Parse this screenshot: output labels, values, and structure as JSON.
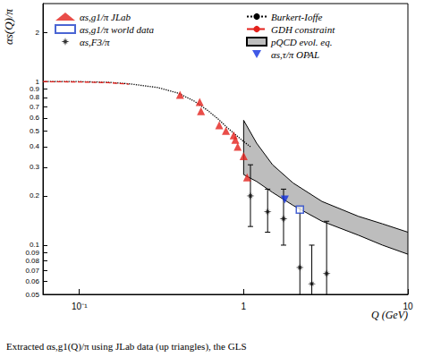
{
  "chart_data": {
    "type": "scatter",
    "title": "Extracted αs,g1(Q)/π using JLab data (up triangles), the GLS",
    "x_label": "Q (GeV)",
    "y_label": "αs(Q)/π",
    "log": true,
    "grid": false,
    "legend": "top",
    "xlim": [
      0.06,
      10
    ],
    "ylim": [
      0.05,
      3
    ],
    "xticks": [
      {
        "value": 0.1,
        "label": "10⁻¹"
      },
      1,
      10
    ],
    "yticks": [
      0.05,
      0.06,
      0.07,
      0.08,
      0.09,
      0.1,
      0.2,
      0.3,
      0.4,
      0.5,
      0.6,
      0.7,
      0.8,
      0.9,
      1,
      2
    ],
    "series": [
      {
        "name": "αs,g1/π JLab",
        "type": "scatter",
        "marker": "triangle",
        "color": "#e3211c",
        "x": [
          0.41,
          0.54,
          0.55,
          0.71,
          0.78,
          0.87,
          0.89,
          0.92,
          1.0,
          1.05
        ],
        "values": [
          0.83,
          0.75,
          0.66,
          0.54,
          0.5,
          0.47,
          0.44,
          0.4,
          0.35,
          0.26
        ]
      },
      {
        "name": "αs,g1/π world data",
        "type": "scatter",
        "marker": "square_open",
        "color": "#1d3fc8",
        "x": [
          2.2
        ],
        "values": [
          0.165
        ]
      },
      {
        "name": "αs,F3/π",
        "type": "scatter",
        "marker": "star",
        "color": "#000000",
        "x": [
          1.1,
          1.4,
          1.75,
          2.2,
          2.6,
          3.2
        ],
        "values": [
          0.2,
          0.16,
          0.145,
          0.073,
          0.058,
          0.067
        ],
        "error_low": [
          0.13,
          0.12,
          0.1,
          0.045,
          0.04,
          0.045
        ],
        "error_high": [
          0.31,
          0.22,
          0.22,
          0.17,
          0.1,
          0.14
        ]
      },
      {
        "name": "Burkert-Ioffe",
        "type": "line",
        "line_style": "dotted",
        "color": "#000000",
        "x": [
          0.06,
          0.1,
          0.15,
          0.2,
          0.3,
          0.4,
          0.5,
          0.6,
          0.7,
          0.8,
          0.9,
          1.0,
          1.1
        ],
        "values": [
          1.0,
          1.0,
          0.99,
          0.97,
          0.92,
          0.85,
          0.76,
          0.67,
          0.59,
          0.52,
          0.47,
          0.43,
          0.4
        ]
      },
      {
        "name": "GDH constraint",
        "type": "line",
        "line_style": "dashed",
        "color": "#e3211c",
        "x": [
          0.06,
          0.1,
          0.15,
          0.2
        ],
        "values": [
          1.0,
          0.995,
          0.985,
          0.965
        ]
      },
      {
        "name": "pQCD evol. eq.",
        "type": "band",
        "color": "#bdbdbd",
        "x": [
          1.0,
          1.2,
          1.5,
          2,
          3,
          5,
          7,
          10
        ],
        "upper": [
          0.58,
          0.42,
          0.31,
          0.24,
          0.185,
          0.15,
          0.135,
          0.12
        ],
        "lower": [
          0.27,
          0.245,
          0.21,
          0.175,
          0.14,
          0.115,
          0.1,
          0.088
        ]
      },
      {
        "name": "αs,τ/π OPAL",
        "type": "scatter",
        "marker": "triangle_down",
        "color": "#1030e0",
        "x": [
          1.78
        ],
        "values": [
          0.19
        ]
      }
    ]
  }
}
